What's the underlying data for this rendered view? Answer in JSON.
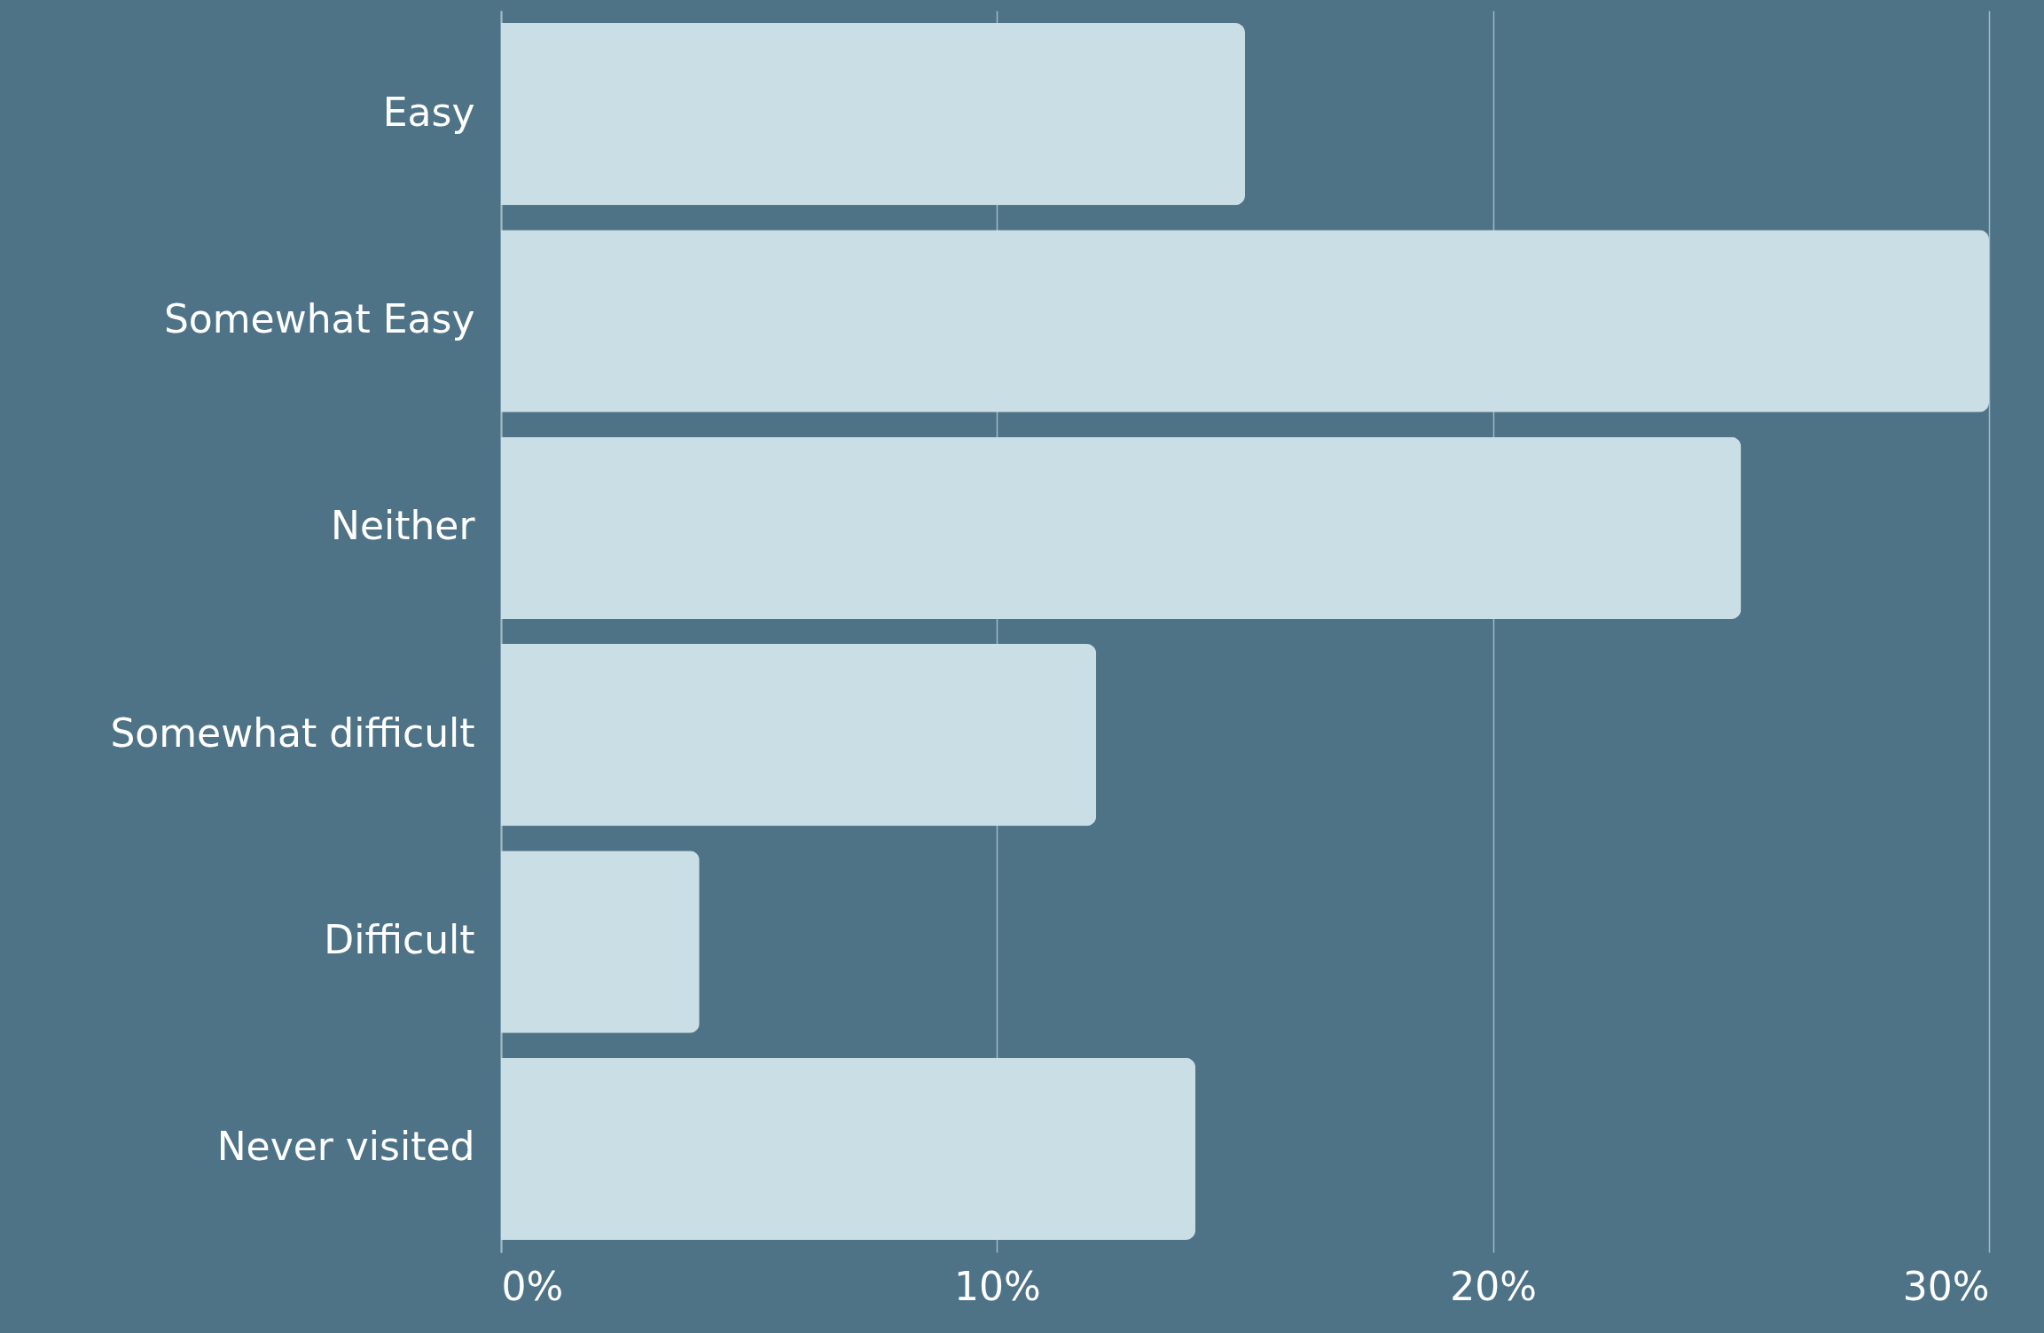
{
  "chart_data": {
    "type": "bar",
    "orientation": "horizontal",
    "categories": [
      "Easy",
      "Somewhat Easy",
      "Neither",
      "Somewhat difficult",
      "Difficult",
      "Never visited"
    ],
    "values": [
      15,
      30,
      25,
      12,
      4,
      14
    ],
    "color": "#cadfe5",
    "xlim": [
      0,
      30
    ],
    "xticks": [
      {
        "value": 0,
        "label": "0%"
      },
      {
        "value": 10,
        "label": "10%"
      },
      {
        "value": 20,
        "label": "20%"
      },
      {
        "value": 30,
        "label": "30%"
      }
    ],
    "grid": "x"
  }
}
